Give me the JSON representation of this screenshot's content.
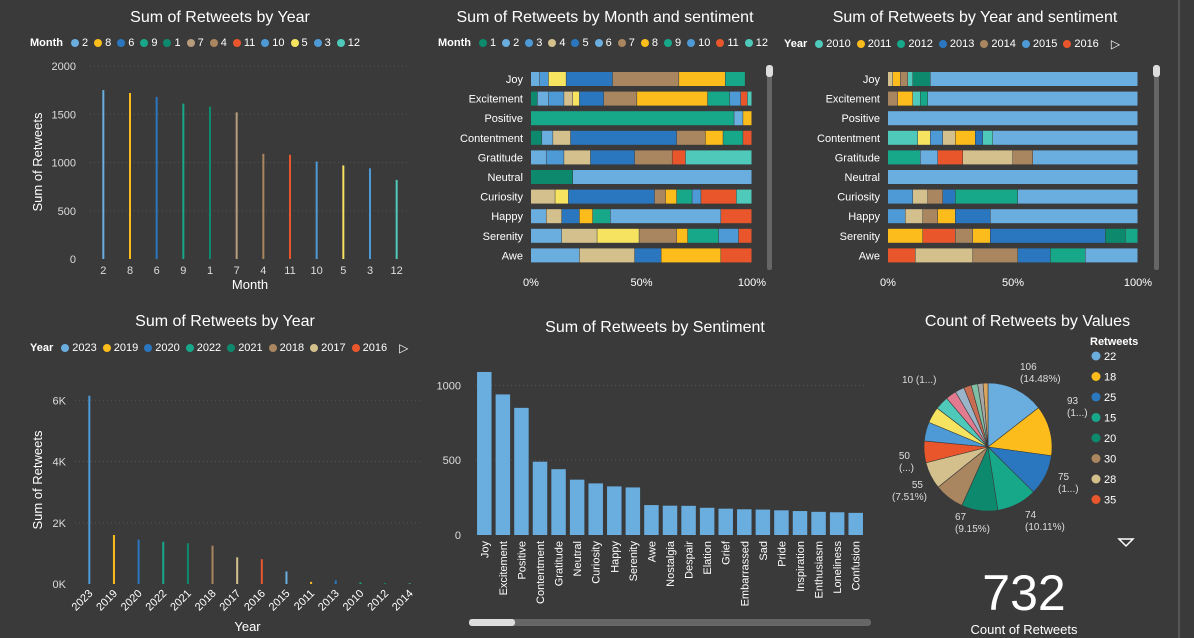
{
  "colors": {
    "c1": "#6aaee0",
    "c2": "#fbbc1c",
    "c3": "#2a77c0",
    "c4": "#17a88a",
    "c5": "#0d8a6e",
    "c6": "#b69c7a",
    "c7": "#a9865f",
    "c8": "#e9562b",
    "c9": "#4d9ad6",
    "c10": "#f6e35f",
    "c11": "#4fc9b9",
    "c12": "#d4c08c"
  },
  "chart_data": [
    {
      "id": "c1",
      "type": "bar",
      "title": "Sum of Retweets by Year",
      "legend_title": "Month",
      "legend": [
        "2",
        "8",
        "6",
        "9",
        "1",
        "7",
        "4",
        "11",
        "10",
        "5",
        "3",
        "12"
      ],
      "categories": [
        "2",
        "8",
        "6",
        "9",
        "1",
        "7",
        "4",
        "11",
        "10",
        "5",
        "3",
        "12"
      ],
      "values": [
        1750,
        1720,
        1680,
        1610,
        1580,
        1520,
        1090,
        1080,
        1010,
        970,
        940,
        820
      ],
      "colors": [
        "#6aaee0",
        "#fbbc1c",
        "#2a77c0",
        "#17a88a",
        "#0d8a6e",
        "#b69c7a",
        "#a9865f",
        "#e9562b",
        "#4d9ad6",
        "#f6e35f",
        "#4d9ad6",
        "#4fc9b9"
      ],
      "xlabel": "Month",
      "ylabel": "Sum of Retweets",
      "ylim": [
        0,
        2000
      ],
      "yticks": [
        "0",
        "500",
        "1000",
        "1500",
        "2000"
      ]
    },
    {
      "id": "c2",
      "type": "bar",
      "stacked": "100%",
      "title": "Sum of Retweets by Month and sentiment",
      "legend_title": "Month",
      "legend": [
        "1",
        "2",
        "3",
        "4",
        "5",
        "6",
        "7",
        "8",
        "9",
        "10",
        "11",
        "12"
      ],
      "legend_colors": [
        "#0d8a6e",
        "#6aaee0",
        "#4d9ad6",
        "#d4c08c",
        "#2a77c0",
        "#6aaee0",
        "#a9865f",
        "#fbbc1c",
        "#17a88a",
        "#4d9ad6",
        "#e9562b",
        "#4fc9b9"
      ],
      "categories": [
        "Joy",
        "Excitement",
        "Positive",
        "Contentment",
        "Gratitude",
        "Neutral",
        "Curiosity",
        "Happy",
        "Serenity",
        "Awe"
      ],
      "segments": [
        [
          [
            4,
            "#6aaee0"
          ],
          [
            4,
            "#4d9ad6"
          ],
          [
            8,
            "#f6e35f"
          ],
          [
            21,
            "#2a77c0"
          ],
          [
            30,
            "#a9865f"
          ],
          [
            21,
            "#fbbc1c"
          ],
          [
            9,
            "#17a88a"
          ]
        ],
        [
          [
            3,
            "#0d8a6e"
          ],
          [
            5,
            "#6aaee0"
          ],
          [
            7,
            "#4d9ad6"
          ],
          [
            4,
            "#d4c08c"
          ],
          [
            3,
            "#f6e35f"
          ],
          [
            11,
            "#2a77c0"
          ],
          [
            15,
            "#a9865f"
          ],
          [
            32,
            "#fbbc1c"
          ],
          [
            10,
            "#17a88a"
          ],
          [
            5,
            "#4d9ad6"
          ],
          [
            3,
            "#e9562b"
          ],
          [
            2,
            "#4fc9b9"
          ]
        ],
        [
          [
            92,
            "#17a88a"
          ],
          [
            4,
            "#6aaee0"
          ],
          [
            4,
            "#fbbc1c"
          ]
        ],
        [
          [
            5,
            "#0d8a6e"
          ],
          [
            5,
            "#6aaee0"
          ],
          [
            8,
            "#d4c08c"
          ],
          [
            48,
            "#2a77c0"
          ],
          [
            13,
            "#a9865f"
          ],
          [
            8,
            "#fbbc1c"
          ],
          [
            9,
            "#17a88a"
          ],
          [
            4,
            "#e9562b"
          ]
        ],
        [
          [
            7,
            "#6aaee0"
          ],
          [
            8,
            "#4d9ad6"
          ],
          [
            12,
            "#d4c08c"
          ],
          [
            20,
            "#2a77c0"
          ],
          [
            17,
            "#a9865f"
          ],
          [
            6,
            "#e9562b"
          ],
          [
            30,
            "#4fc9b9"
          ]
        ],
        [
          [
            19,
            "#0d8a6e"
          ],
          [
            81,
            "#6aaee0"
          ]
        ],
        [
          [
            11,
            "#d4c08c"
          ],
          [
            6,
            "#f6e35f"
          ],
          [
            39,
            "#2a77c0"
          ],
          [
            5,
            "#a9865f"
          ],
          [
            5,
            "#fbbc1c"
          ],
          [
            7,
            "#17a88a"
          ],
          [
            4,
            "#4d9ad6"
          ],
          [
            16,
            "#e9562b"
          ],
          [
            7,
            "#4fc9b9"
          ]
        ],
        [
          [
            7,
            "#6aaee0"
          ],
          [
            7,
            "#d4c08c"
          ],
          [
            8,
            "#2a77c0"
          ],
          [
            6,
            "#fbbc1c"
          ],
          [
            8,
            "#17a88a"
          ],
          [
            50,
            "#6aaee0"
          ],
          [
            14,
            "#e9562b"
          ]
        ],
        [
          [
            14,
            "#6aaee0"
          ],
          [
            16,
            "#d4c08c"
          ],
          [
            19,
            "#f6e35f"
          ],
          [
            17,
            "#a9865f"
          ],
          [
            5,
            "#fbbc1c"
          ],
          [
            14,
            "#17a88a"
          ],
          [
            9,
            "#4d9ad6"
          ],
          [
            6,
            "#e9562b"
          ]
        ],
        [
          [
            22,
            "#6aaee0"
          ],
          [
            25,
            "#d4c08c"
          ],
          [
            12,
            "#2a77c0"
          ],
          [
            27,
            "#fbbc1c"
          ],
          [
            14,
            "#e9562b"
          ]
        ]
      ],
      "xticks": [
        "0%",
        "50%",
        "100%"
      ]
    },
    {
      "id": "c3",
      "type": "bar",
      "stacked": "100%",
      "title": "Sum of Retweets by Year and sentiment",
      "legend_title": "Year",
      "legend": [
        "2010",
        "2011",
        "2012",
        "2013",
        "2014",
        "2015",
        "2016"
      ],
      "legend_colors": [
        "#4fc9b9",
        "#fbbc1c",
        "#17a88a",
        "#2a77c0",
        "#a9865f",
        "#4d9ad6",
        "#e9562b"
      ],
      "categories": [
        "Joy",
        "Excitement",
        "Positive",
        "Contentment",
        "Gratitude",
        "Neutral",
        "Curiosity",
        "Happy",
        "Serenity",
        "Awe"
      ],
      "segments": [
        [
          [
            2,
            "#d4c08c"
          ],
          [
            3,
            "#fbbc1c"
          ],
          [
            3,
            "#a9865f"
          ],
          [
            2,
            "#4fc9b9"
          ],
          [
            7,
            "#0d8a6e"
          ],
          [
            83,
            "#6aaee0"
          ]
        ],
        [
          [
            4,
            "#a9865f"
          ],
          [
            6,
            "#fbbc1c"
          ],
          [
            3,
            "#4fc9b9"
          ],
          [
            3,
            "#17a88a"
          ],
          [
            84,
            "#6aaee0"
          ]
        ],
        [
          [
            100,
            "#6aaee0"
          ]
        ],
        [
          [
            12,
            "#4fc9b9"
          ],
          [
            5,
            "#f6e35f"
          ],
          [
            5,
            "#4d9ad6"
          ],
          [
            5,
            "#d4c08c"
          ],
          [
            8,
            "#fbbc1c"
          ],
          [
            3,
            "#2a77c0"
          ],
          [
            4,
            "#4fc9b9"
          ],
          [
            58,
            "#6aaee0"
          ]
        ],
        [
          [
            13,
            "#17a88a"
          ],
          [
            7,
            "#6aaee0"
          ],
          [
            10,
            "#e9562b"
          ],
          [
            20,
            "#d4c08c"
          ],
          [
            8,
            "#a9865f"
          ],
          [
            42,
            "#6aaee0"
          ]
        ],
        [
          [
            100,
            "#6aaee0"
          ]
        ],
        [
          [
            10,
            "#4d9ad6"
          ],
          [
            6,
            "#d4c08c"
          ],
          [
            6,
            "#a9865f"
          ],
          [
            5,
            "#2a77c0"
          ],
          [
            25,
            "#17a88a"
          ],
          [
            48,
            "#6aaee0"
          ]
        ],
        [
          [
            7,
            "#4d9ad6"
          ],
          [
            7,
            "#d4c08c"
          ],
          [
            6,
            "#a9865f"
          ],
          [
            7,
            "#fbbc1c"
          ],
          [
            14,
            "#2a77c0"
          ],
          [
            59,
            "#6aaee0"
          ]
        ],
        [
          [
            14,
            "#fbbc1c"
          ],
          [
            13,
            "#e9562b"
          ],
          [
            7,
            "#a9865f"
          ],
          [
            7,
            "#fbbc1c"
          ],
          [
            46,
            "#2a77c0"
          ],
          [
            8,
            "#0d8a6e"
          ],
          [
            5,
            "#17a88a"
          ]
        ],
        [
          [
            11,
            "#e9562b"
          ],
          [
            23,
            "#d4c08c"
          ],
          [
            18,
            "#a9865f"
          ],
          [
            13,
            "#2a77c0"
          ],
          [
            14,
            "#17a88a"
          ],
          [
            21,
            "#6aaee0"
          ]
        ]
      ],
      "xticks": [
        "0%",
        "50%",
        "100%"
      ]
    },
    {
      "id": "c4",
      "type": "bar",
      "title": "Sum of Retweets by Year",
      "legend_title": "Year",
      "legend": [
        "2023",
        "2019",
        "2020",
        "2022",
        "2021",
        "2018",
        "2017",
        "2016"
      ],
      "legend_colors": [
        "#6aaee0",
        "#fbbc1c",
        "#2a77c0",
        "#17a88a",
        "#0d8a6e",
        "#a9865f",
        "#d4c08c",
        "#e9562b"
      ],
      "categories": [
        "2023",
        "2019",
        "2020",
        "2022",
        "2021",
        "2018",
        "2017",
        "2016",
        "2015",
        "2011",
        "2013",
        "2010",
        "2012",
        "2014"
      ],
      "values": [
        6150,
        1600,
        1450,
        1380,
        1330,
        1250,
        870,
        810,
        410,
        70,
        120,
        50,
        30,
        20
      ],
      "colors": [
        "#4d9ad6",
        "#fbbc1c",
        "#2a77c0",
        "#17a88a",
        "#0d8a6e",
        "#a9865f",
        "#d4c08c",
        "#e9562b",
        "#6aaee0",
        "#fbbc1c",
        "#2a77c0",
        "#17a88a",
        "#0d8a6e",
        "#4fc9b9"
      ],
      "xlabel": "Year",
      "ylabel": "Sum of Retweets",
      "ylim": [
        0,
        6500
      ],
      "yticks": [
        "0K",
        "2K",
        "4K",
        "6K"
      ]
    },
    {
      "id": "c5",
      "type": "bar",
      "title": "Sum of Retweets by Sentiment",
      "categories": [
        "Joy",
        "Excitement",
        "Positive",
        "Contentment",
        "Gratitude",
        "Neutral",
        "Curiosity",
        "Happy",
        "Serenity",
        "Awe",
        "Nostalgia",
        "Despair",
        "Elation",
        "Grief",
        "Embarrassed",
        "Sad",
        "Pride",
        "Inspiration",
        "Enthusiasm",
        "Loneliness",
        "Confusion"
      ],
      "values": [
        1090,
        940,
        850,
        490,
        440,
        370,
        345,
        325,
        318,
        200,
        196,
        195,
        182,
        176,
        172,
        170,
        165,
        160,
        155,
        152,
        148
      ],
      "color": "#6aaee0",
      "ylim": [
        0,
        1150
      ],
      "yticks": [
        "0",
        "500",
        "1000"
      ]
    },
    {
      "id": "c6",
      "type": "pie",
      "title": "Count of Retweets by Values",
      "legend_title": "Retweets",
      "legend": [
        "22",
        "18",
        "25",
        "15",
        "20",
        "30",
        "28",
        "35"
      ],
      "legend_colors": [
        "#6aaee0",
        "#fbbc1c",
        "#2a77c0",
        "#17a88a",
        "#0d8a6e",
        "#a9865f",
        "#d4c08c",
        "#e9562b"
      ],
      "slices": [
        {
          "label": "22",
          "value": 106,
          "color": "#6aaee0"
        },
        {
          "label": "18",
          "value": 93,
          "color": "#fbbc1c"
        },
        {
          "label": "25",
          "value": 75,
          "color": "#2a77c0"
        },
        {
          "label": "15",
          "value": 74,
          "color": "#17a88a"
        },
        {
          "label": "20",
          "value": 67,
          "color": "#0d8a6e"
        },
        {
          "label": "30",
          "value": 55,
          "color": "#a9865f"
        },
        {
          "label": "28",
          "value": 50,
          "color": "#d4c08c"
        },
        {
          "label": "35",
          "value": 40,
          "color": "#e9562b"
        },
        {
          "label": "o1",
          "value": 35,
          "color": "#4d9ad6"
        },
        {
          "label": "o2",
          "value": 30,
          "color": "#f6e35f"
        },
        {
          "label": "o3",
          "value": 25,
          "color": "#4fc9b9"
        },
        {
          "label": "o4",
          "value": 20,
          "color": "#e27b8f"
        },
        {
          "label": "o5",
          "value": 17,
          "color": "#9ab5c9"
        },
        {
          "label": "o6",
          "value": 14,
          "color": "#c96d52"
        },
        {
          "label": "o7",
          "value": 12,
          "color": "#7fbfa4"
        },
        {
          "label": "o8",
          "value": 10,
          "color": "#a6a6a6"
        },
        {
          "label": "o9",
          "value": 9,
          "color": "#d9a55e"
        }
      ],
      "data_labels": [
        {
          "line1": "106",
          "line2": "(14.48%)"
        },
        {
          "line1": "93",
          "line2": "(1...)"
        },
        {
          "line1": "75",
          "line2": "(1...)"
        },
        {
          "line1": "74",
          "line2": "(10.11%)"
        },
        {
          "line1": "67",
          "line2": "(9.15%)"
        },
        {
          "line1": "55",
          "line2": "(7.51%)"
        },
        {
          "line1": "50",
          "line2": "(...)"
        },
        {
          "line1": "10 (1...)",
          "line2": ""
        }
      ]
    }
  ],
  "kpi": {
    "value": "732",
    "label": "Count of Retweets"
  }
}
